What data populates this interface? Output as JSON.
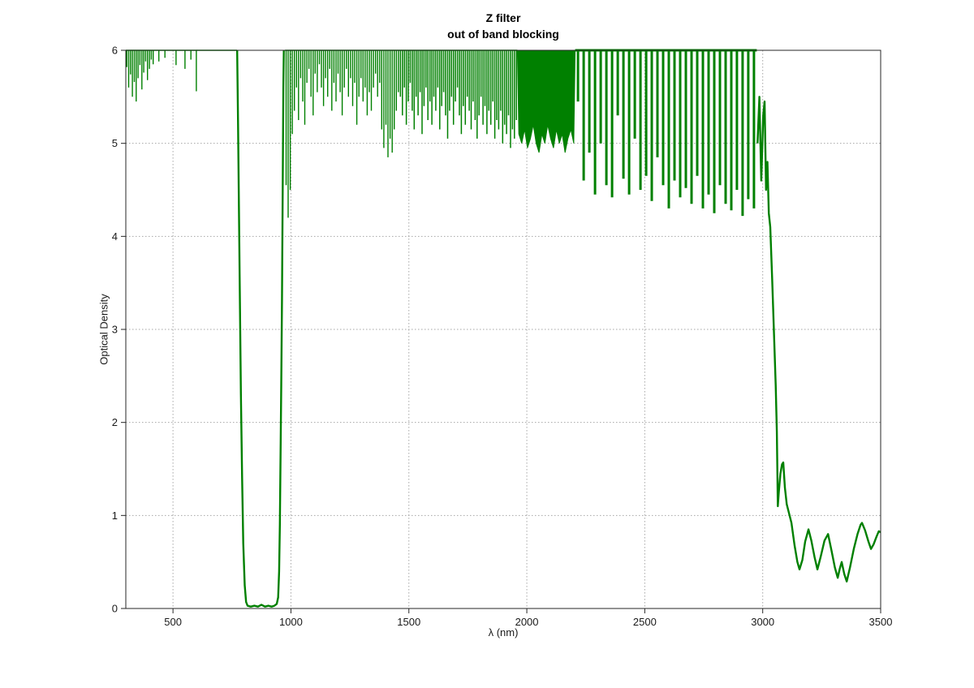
{
  "figure": {
    "background": "#ffffff"
  },
  "chart_data": {
    "type": "line",
    "title": "Z filter",
    "subtitle": "out of band blocking",
    "xlabel": "λ (nm)",
    "ylabel": "Optical Density",
    "xlim": [
      300,
      3500
    ],
    "ylim": [
      0,
      6
    ],
    "xticks": [
      500,
      1000,
      1500,
      2000,
      2500,
      3000,
      3500
    ],
    "yticks": [
      0,
      1,
      2,
      3,
      4,
      5,
      6
    ],
    "grid": {
      "show": true,
      "style": "dotted",
      "color": "#a6a6a6"
    },
    "axis_color": "#262626",
    "line_color": "#008000",
    "series_name": "optical-density-spectrum",
    "segments": [
      {
        "kind": "spike_band",
        "x0": 300,
        "x1": 420,
        "top": 6,
        "width": 1.4,
        "tips": [
          5.82,
          5.6,
          5.74,
          5.5,
          5.66,
          5.45,
          5.7,
          5.84,
          5.58,
          5.76,
          5.88,
          5.68,
          5.8,
          5.9,
          5.85
        ]
      },
      {
        "kind": "spikes",
        "x0": 420,
        "x1": 600,
        "top": 6,
        "width": 1.4,
        "points": [
          [
            440,
            5.88
          ],
          [
            466,
            5.92
          ],
          [
            513,
            5.84
          ],
          [
            551,
            5.8
          ],
          [
            576,
            5.9
          ],
          [
            599,
            5.56
          ]
        ]
      },
      {
        "kind": "flat",
        "x0": 600,
        "x1": 772,
        "y": 6,
        "width": 1.4
      },
      {
        "kind": "polyline",
        "width": 2.4,
        "points": [
          [
            772,
            6
          ],
          [
            776,
            5.2
          ],
          [
            780,
            4.2
          ],
          [
            784,
            3.2
          ],
          [
            788,
            2.3
          ],
          [
            793,
            1.4
          ],
          [
            798,
            0.7
          ],
          [
            804,
            0.25
          ],
          [
            810,
            0.07
          ],
          [
            816,
            0.03
          ],
          [
            830,
            0.02
          ],
          [
            845,
            0.03
          ],
          [
            860,
            0.02
          ],
          [
            875,
            0.04
          ],
          [
            890,
            0.02
          ],
          [
            905,
            0.03
          ],
          [
            918,
            0.02
          ],
          [
            930,
            0.03
          ],
          [
            940,
            0.05
          ],
          [
            946,
            0.12
          ],
          [
            950,
            0.4
          ],
          [
            953,
            0.9
          ],
          [
            956,
            1.6
          ],
          [
            959,
            2.4
          ],
          [
            962,
            3.3
          ],
          [
            964,
            4.1
          ],
          [
            966,
            4.9
          ],
          [
            968,
            5.6
          ],
          [
            970,
            6
          ]
        ]
      },
      {
        "kind": "spike_band",
        "x0": 975,
        "x1": 1460,
        "top": 6,
        "width": 1.4,
        "tips": [
          4.55,
          4.2,
          4.5,
          5.1,
          5.35,
          5.6,
          5.25,
          5.7,
          5.45,
          5.2,
          5.65,
          5.8,
          5.5,
          5.3,
          5.75,
          5.55,
          5.85,
          5.6,
          5.4,
          5.7,
          5.5,
          5.8,
          5.35,
          5.65,
          5.45,
          5.75,
          5.55,
          5.3,
          5.6,
          5.8,
          5.5,
          5.7,
          5.4,
          5.65,
          5.2,
          5.5,
          5.7,
          5.45,
          5.6,
          5.3,
          5.55,
          5.35,
          5.6,
          5.75,
          5.5,
          5.65,
          5.15,
          4.95,
          5.2,
          4.85,
          5.05,
          4.9,
          5.15,
          5.35,
          5.55
        ]
      },
      {
        "kind": "spike_band",
        "x0": 1460,
        "x1": 1960,
        "top": 6,
        "width": 1.5,
        "tips": [
          5.5,
          5.3,
          5.6,
          5.2,
          5.45,
          5.65,
          5.35,
          5.15,
          5.5,
          5.3,
          5.55,
          5.1,
          5.4,
          5.6,
          5.25,
          5.45,
          5.2,
          5.5,
          5.35,
          5.6,
          5.15,
          5.4,
          5.55,
          5.3,
          5.05,
          5.35,
          5.5,
          5.2,
          5.45,
          5.6,
          5.3,
          5.1,
          5.4,
          5.2,
          5.5,
          5.35,
          5.15,
          5.45,
          5.25,
          5.05,
          5.3,
          5.5,
          5.2,
          5.4,
          5.1,
          5.35,
          5.2,
          5.45,
          5.05,
          5.25,
          5.15,
          5.35,
          5.0,
          5.2,
          5.1,
          5.3,
          4.95,
          5.15,
          5.05,
          5.25
        ]
      },
      {
        "kind": "spike_band",
        "x0": 1960,
        "x1": 2205,
        "top": 6,
        "solid": true,
        "width": 1.4,
        "tips": [
          5.1,
          5.0,
          5.15,
          4.95,
          5.05,
          5.2,
          5.0,
          4.9,
          5.1,
          5.0,
          5.2,
          5.05,
          4.95,
          5.15,
          5.0,
          5.1,
          4.9,
          5.05,
          5.15,
          5.0
        ]
      },
      {
        "kind": "spike_band",
        "x0": 2205,
        "x1": 2975,
        "top": 6,
        "width": 3,
        "tips": [
          5.45,
          4.6,
          4.9,
          4.45,
          5.0,
          4.55,
          4.42,
          5.3,
          4.62,
          4.45,
          5.05,
          4.5,
          4.65,
          4.38,
          4.85,
          4.55,
          4.3,
          4.6,
          4.42,
          4.52,
          4.35,
          4.65,
          4.3,
          4.45,
          4.25,
          4.55,
          4.35,
          4.28,
          4.5,
          4.22,
          4.4,
          4.3
        ]
      },
      {
        "kind": "polyline",
        "width": 2.4,
        "points": [
          [
            2978,
            5.0
          ],
          [
            2986,
            5.5
          ],
          [
            2994,
            4.6
          ],
          [
            3002,
            5.3
          ],
          [
            3008,
            5.45
          ],
          [
            3014,
            4.5
          ],
          [
            3020,
            4.8
          ],
          [
            3026,
            4.25
          ],
          [
            3032,
            4.1
          ],
          [
            3040,
            3.55
          ],
          [
            3048,
            2.95
          ],
          [
            3055,
            2.4
          ],
          [
            3060,
            1.9
          ],
          [
            3064,
            1.1
          ],
          [
            3068,
            1.25
          ],
          [
            3075,
            1.45
          ],
          [
            3082,
            1.55
          ],
          [
            3087,
            1.57
          ],
          [
            3094,
            1.3
          ],
          [
            3102,
            1.12
          ],
          [
            3112,
            1.02
          ],
          [
            3122,
            0.92
          ],
          [
            3135,
            0.68
          ],
          [
            3147,
            0.5
          ],
          [
            3156,
            0.42
          ],
          [
            3168,
            0.52
          ],
          [
            3180,
            0.72
          ],
          [
            3194,
            0.85
          ],
          [
            3206,
            0.73
          ],
          [
            3220,
            0.55
          ],
          [
            3232,
            0.42
          ],
          [
            3246,
            0.56
          ],
          [
            3262,
            0.73
          ],
          [
            3277,
            0.8
          ],
          [
            3292,
            0.62
          ],
          [
            3306,
            0.44
          ],
          [
            3318,
            0.33
          ],
          [
            3327,
            0.43
          ],
          [
            3335,
            0.5
          ],
          [
            3346,
            0.37
          ],
          [
            3356,
            0.29
          ],
          [
            3370,
            0.44
          ],
          [
            3386,
            0.64
          ],
          [
            3402,
            0.8
          ],
          [
            3415,
            0.9
          ],
          [
            3421,
            0.92
          ],
          [
            3434,
            0.84
          ],
          [
            3448,
            0.72
          ],
          [
            3459,
            0.64
          ],
          [
            3470,
            0.69
          ],
          [
            3482,
            0.77
          ],
          [
            3492,
            0.83
          ],
          [
            3500,
            0.82
          ]
        ]
      }
    ]
  }
}
